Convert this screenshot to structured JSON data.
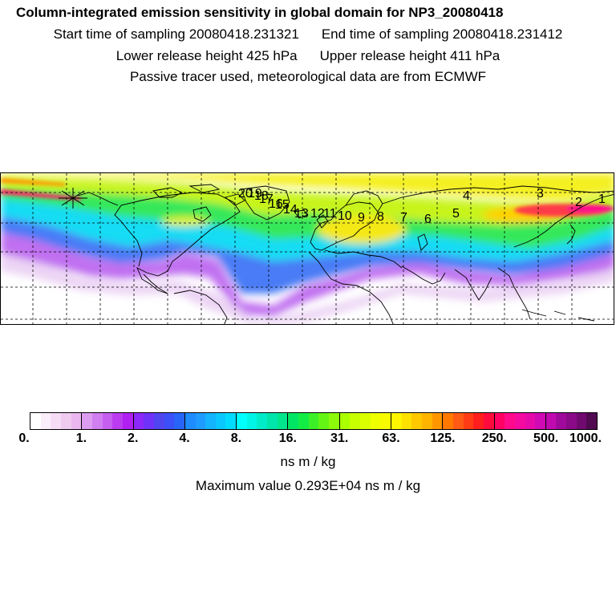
{
  "header": {
    "title": "Column-integrated emission sensitivity in global domain for NP3_20080418",
    "start_time": "Start time of sampling 20080418.231321",
    "end_time": "End time of sampling 20080418.231412",
    "lower_release": "Lower release height  425 hPa",
    "upper_release": "Upper release height  411 hPa",
    "tracer_note": "Passive tracer used, meteorological data are from ECMWF"
  },
  "map": {
    "release_labels": [
      "1",
      "2",
      "3",
      "4",
      "5",
      "6",
      "7",
      "8",
      "9",
      "10",
      "11",
      "12",
      "13",
      "14",
      "15",
      "16",
      "17",
      "18",
      "19",
      "20"
    ],
    "colors": {
      "land_outline": "#000000",
      "gridline": "#000000",
      "marker": "#000000"
    }
  },
  "colorbar": {
    "colors": [
      "#ffffff",
      "#fbeefb",
      "#f6ddf6",
      "#f0cbf0",
      "#eab8ee",
      "#dc9cf0",
      "#d07ef0",
      "#c55ff0",
      "#bb3cf0",
      "#b020f0",
      "#8c28f8",
      "#6e32f8",
      "#5046f0",
      "#3c50f8",
      "#2864f8",
      "#1e8cff",
      "#1e9cff",
      "#14b4ff",
      "#0ac8ff",
      "#00dcff",
      "#00ffff",
      "#00f5e6",
      "#00ecc8",
      "#00e6aa",
      "#00e68c",
      "#00e664",
      "#14ec46",
      "#3cf028",
      "#64f514",
      "#8cfa0a",
      "#aaff00",
      "#c8ff00",
      "#dcff00",
      "#f0ff00",
      "#f8fa00",
      "#fff500",
      "#ffe100",
      "#ffc800",
      "#ffb400",
      "#ff9600",
      "#ff7800",
      "#ff5a14",
      "#ff3c14",
      "#ff1e1e",
      "#ff0a3c",
      "#ff0064",
      "#ff0a8c",
      "#f50aa0",
      "#e60aaa",
      "#d00ab4",
      "#c00ab0",
      "#a00a9c",
      "#8a0a88",
      "#700a70",
      "#500a50"
    ],
    "tick_labels": [
      "0.",
      "1.",
      "2.",
      "4.",
      "8.",
      "16.",
      "31.",
      "63.",
      "125.",
      "250.",
      "500.",
      "1000."
    ],
    "units": "ns m / kg",
    "max_value": "Maximum value  0.293E+04 ns m / kg"
  }
}
